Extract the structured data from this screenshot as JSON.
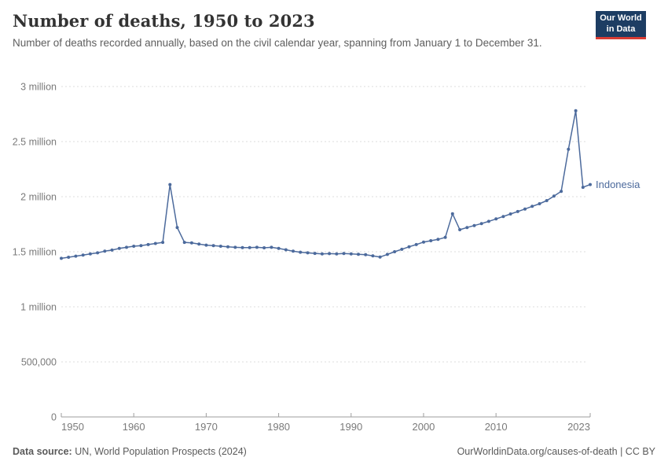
{
  "header": {
    "title": "Number of deaths, 1950 to 2023",
    "subtitle": "Number of deaths recorded annually, based on the civil calendar year, spanning from January 1 to December 31."
  },
  "logo": {
    "line1": "Our World",
    "line2": "in Data",
    "bg_color": "#1d3d63",
    "accent_color": "#d93c34"
  },
  "chart_data": {
    "type": "line",
    "title": "Number of deaths, 1950 to 2023",
    "xlabel": "",
    "ylabel": "",
    "entity_label": "Indonesia",
    "xlim": [
      1950,
      2023
    ],
    "ylim": [
      0,
      3000000
    ],
    "grid": "horizontal-dashed",
    "legend_position": "end-of-line-label",
    "x_ticks": [
      1950,
      1960,
      1970,
      1980,
      1990,
      2000,
      2010,
      2023
    ],
    "y_ticks": [
      {
        "value": 0,
        "label": "0"
      },
      {
        "value": 500000,
        "label": "500,000"
      },
      {
        "value": 1000000,
        "label": "1 million"
      },
      {
        "value": 1500000,
        "label": "1.5 million"
      },
      {
        "value": 2000000,
        "label": "2 million"
      },
      {
        "value": 2500000,
        "label": "2.5 million"
      },
      {
        "value": 3000000,
        "label": "3 million"
      }
    ],
    "x": [
      1950,
      1951,
      1952,
      1953,
      1954,
      1955,
      1956,
      1957,
      1958,
      1959,
      1960,
      1961,
      1962,
      1963,
      1964,
      1965,
      1966,
      1967,
      1968,
      1969,
      1970,
      1971,
      1972,
      1973,
      1974,
      1975,
      1976,
      1977,
      1978,
      1979,
      1980,
      1981,
      1982,
      1983,
      1984,
      1985,
      1986,
      1987,
      1988,
      1989,
      1990,
      1991,
      1992,
      1993,
      1994,
      1995,
      1996,
      1997,
      1998,
      1999,
      2000,
      2001,
      2002,
      2003,
      2004,
      2005,
      2006,
      2007,
      2008,
      2009,
      2010,
      2011,
      2012,
      2013,
      2014,
      2015,
      2016,
      2017,
      2018,
      2019,
      2020,
      2021,
      2022,
      2023
    ],
    "series": [
      {
        "name": "Indonesia",
        "values": [
          1440000,
          1450000,
          1460000,
          1470000,
          1480000,
          1490000,
          1505000,
          1515000,
          1530000,
          1540000,
          1550000,
          1555000,
          1565000,
          1575000,
          1585000,
          2110000,
          1720000,
          1585000,
          1580000,
          1570000,
          1560000,
          1555000,
          1550000,
          1545000,
          1540000,
          1537000,
          1538000,
          1540000,
          1536000,
          1540000,
          1530000,
          1518000,
          1505000,
          1496000,
          1490000,
          1485000,
          1480000,
          1483000,
          1480000,
          1484000,
          1480000,
          1477000,
          1473000,
          1462000,
          1452000,
          1476000,
          1500000,
          1522000,
          1545000,
          1565000,
          1588000,
          1600000,
          1612000,
          1630000,
          1845000,
          1700000,
          1720000,
          1738000,
          1756000,
          1776000,
          1798000,
          1820000,
          1843000,
          1865000,
          1888000,
          1912000,
          1936000,
          1964000,
          2005000,
          2048000,
          2430000,
          2780000,
          2085000,
          2110000
        ]
      }
    ],
    "colors": {
      "line": "#4c6a9c",
      "grid": "#dcdcdc",
      "axis": "#9e9e9e",
      "tick_label": "#7a7a7a"
    }
  },
  "footer": {
    "source_label": "Data source:",
    "source_text": " UN, World Population Prospects (2024)",
    "credit": "OurWorldinData.org/causes-of-death | CC BY"
  }
}
